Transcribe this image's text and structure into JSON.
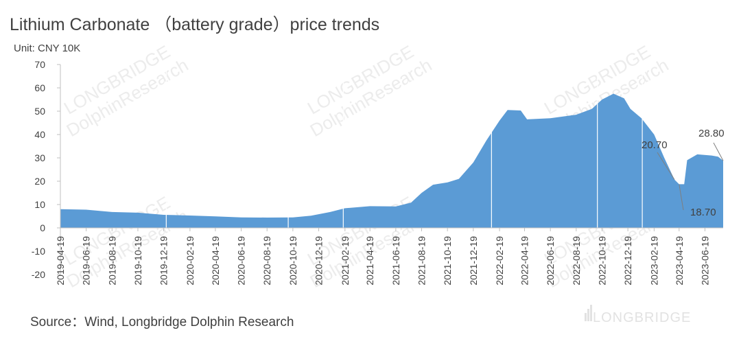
{
  "title": "Lithium Carbonate （battery grade）price trends",
  "unit_label": "Unit: CNY 10K",
  "source": "Source：Wind, Longbridge Dolphin Research",
  "watermark": "DolphinResearch",
  "watermark_small": "LONGBRIDGE",
  "logo_text": "LONGBRIDGE",
  "colors": {
    "area": "#5b9bd5",
    "axis": "#bfbfbf",
    "text": "#404040"
  },
  "chart_data": {
    "type": "area",
    "title": "Lithium Carbonate （battery grade）price trends",
    "ylabel": "Unit: CNY 10K",
    "ylim": [
      -20,
      70
    ],
    "yticks": [
      -20,
      -10,
      0,
      10,
      20,
      30,
      40,
      50,
      60,
      70
    ],
    "xlim": [
      "2019-04-19",
      "2023-08-01"
    ],
    "xticks": [
      "2019-04-19",
      "2019-06-19",
      "2019-08-19",
      "2019-10-19",
      "2019-12-19",
      "2020-02-19",
      "2020-04-19",
      "2020-06-19",
      "2020-08-19",
      "2020-10-19",
      "2020-12-19",
      "2021-02-19",
      "2021-04-19",
      "2021-06-19",
      "2021-08-19",
      "2021-10-19",
      "2021-12-19",
      "2022-02-19",
      "2022-04-19",
      "2022-06-19",
      "2022-08-19",
      "2022-10-19",
      "2022-12-19",
      "2023-02-19",
      "2023-04-19",
      "2023-06-19"
    ],
    "series": [
      {
        "points": [
          [
            "2019-04-19",
            8.0
          ],
          [
            "2019-06-19",
            7.8
          ],
          [
            "2019-08-19",
            6.8
          ],
          [
            "2019-10-19",
            6.5
          ],
          [
            "2019-12-19",
            5.6
          ],
          [
            "2020-02-19",
            5.3
          ],
          [
            "2020-04-19",
            4.9
          ],
          [
            "2020-06-19",
            4.5
          ],
          [
            "2020-08-19",
            4.4
          ],
          [
            "2020-10-19",
            4.5
          ],
          [
            "2020-12-01",
            5.2
          ],
          [
            "2021-01-15",
            6.8
          ],
          [
            "2021-02-19",
            8.4
          ],
          [
            "2021-04-19",
            9.3
          ],
          [
            "2021-06-19",
            9.2
          ],
          [
            "2021-07-25",
            10.8
          ],
          [
            "2021-08-19",
            15.0
          ],
          [
            "2021-09-15",
            18.5
          ],
          [
            "2021-10-19",
            19.5
          ],
          [
            "2021-11-15",
            21.0
          ],
          [
            "2021-12-19",
            28.0
          ],
          [
            "2022-01-19",
            37.5
          ],
          [
            "2022-02-19",
            46.0
          ],
          [
            "2022-03-10",
            50.5
          ],
          [
            "2022-04-10",
            50.3
          ],
          [
            "2022-04-25",
            46.5
          ],
          [
            "2022-06-19",
            47.0
          ],
          [
            "2022-08-19",
            48.5
          ],
          [
            "2022-09-25",
            51.0
          ],
          [
            "2022-10-19",
            55.0
          ],
          [
            "2022-11-15",
            57.5
          ],
          [
            "2022-12-10",
            55.5
          ],
          [
            "2022-12-25",
            51.0
          ],
          [
            "2023-01-20",
            47.0
          ],
          [
            "2023-02-19",
            40.0
          ],
          [
            "2023-03-15",
            30.0
          ],
          [
            "2023-04-08",
            20.7
          ],
          [
            "2023-04-19",
            18.7
          ],
          [
            "2023-05-01",
            18.7
          ],
          [
            "2023-05-08",
            29.0
          ],
          [
            "2023-06-01",
            31.5
          ],
          [
            "2023-07-05",
            31.0
          ],
          [
            "2023-07-20",
            30.5
          ],
          [
            "2023-08-01",
            28.8
          ]
        ]
      }
    ],
    "annotations": [
      {
        "text": "20.70",
        "date": "2023-04-08",
        "value": 20.7
      },
      {
        "text": "18.70",
        "date": "2023-04-19",
        "value": 18.7
      },
      {
        "text": "28.80",
        "date": "2023-08-01",
        "value": 28.8
      }
    ],
    "legend": "none",
    "grid": false
  }
}
